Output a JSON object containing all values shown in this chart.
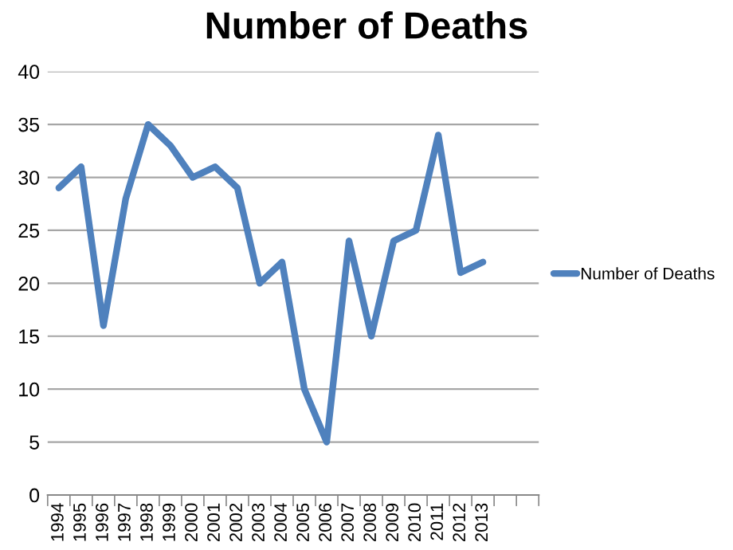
{
  "chart_data": {
    "type": "line",
    "title": "Number of Deaths",
    "categories": [
      "1994",
      "1995",
      "1996",
      "1997",
      "1998",
      "1999",
      "2000",
      "2001",
      "2002",
      "2003",
      "2004",
      "2005",
      "2006",
      "2007",
      "2008",
      "2009",
      "2010",
      "2011",
      "2012",
      "2013",
      null,
      null
    ],
    "series": [
      {
        "name": "Number of Deaths",
        "color": "#4f81bd",
        "values": [
          29,
          31,
          16,
          28,
          35,
          33,
          30,
          31,
          29,
          20,
          22,
          10,
          5,
          24,
          15,
          24,
          25,
          34,
          21,
          22,
          null,
          null
        ]
      }
    ],
    "ylim": [
      0,
      40
    ],
    "yticks": [
      0,
      5,
      10,
      15,
      20,
      25,
      30,
      35,
      40
    ],
    "grid": "y",
    "legend": "right",
    "marker": "none",
    "line_style": "solid"
  }
}
